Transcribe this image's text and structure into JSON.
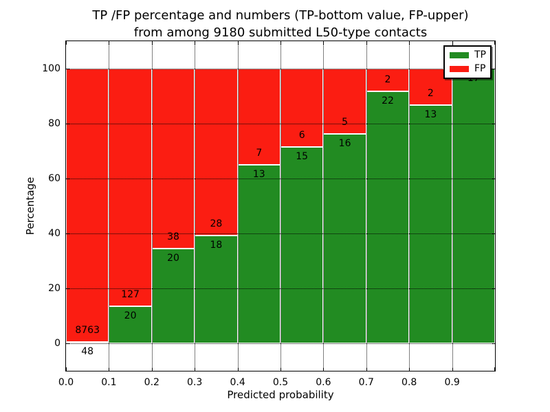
{
  "figure": {
    "title_line1": "TP /FP percentage and numbers (TP-bottom value, FP-upper)",
    "title_line2": "from among 9180 submitted L50-type contacts"
  },
  "colors": {
    "tp_green": "#228b22",
    "fp_red": "#fb1d12",
    "grid": "#000000",
    "background": "#ffffff"
  },
  "chart_data": {
    "type": "bar",
    "stacked": true,
    "units": "percent",
    "title": "TP /FP percentage and numbers (TP-bottom value, FP-upper)\nfrom among 9180 submitted L50-type contacts",
    "xlabel": "Predicted probability",
    "ylabel": "Percentage",
    "xlim": [
      0.0,
      1.0
    ],
    "ylim": [
      -10,
      110
    ],
    "x_ticks": [
      "0.0",
      "0.1",
      "0.2",
      "0.3",
      "0.4",
      "0.5",
      "0.6",
      "0.7",
      "0.8",
      "0.9"
    ],
    "y_ticks": [
      0,
      20,
      40,
      60,
      80,
      100
    ],
    "grid": "dotted",
    "total_contacts": 9180,
    "legend": {
      "position": "upper right",
      "entries": [
        {
          "label": "TP",
          "color": "#228b22"
        },
        {
          "label": "FP",
          "color": "#fb1d12"
        }
      ]
    },
    "bins": [
      {
        "range": [
          0.0,
          0.1
        ],
        "tp": 48,
        "fp": 8763,
        "tp_pct": 0.545,
        "fp_pct": 99.455
      },
      {
        "range": [
          0.1,
          0.2
        ],
        "tp": 20,
        "fp": 127,
        "tp_pct": 13.605,
        "fp_pct": 86.395
      },
      {
        "range": [
          0.2,
          0.3
        ],
        "tp": 20,
        "fp": 38,
        "tp_pct": 34.483,
        "fp_pct": 65.517
      },
      {
        "range": [
          0.3,
          0.4
        ],
        "tp": 18,
        "fp": 28,
        "tp_pct": 39.13,
        "fp_pct": 60.87
      },
      {
        "range": [
          0.4,
          0.5
        ],
        "tp": 13,
        "fp": 7,
        "tp_pct": 65.0,
        "fp_pct": 35.0
      },
      {
        "range": [
          0.5,
          0.6
        ],
        "tp": 15,
        "fp": 6,
        "tp_pct": 71.429,
        "fp_pct": 28.571
      },
      {
        "range": [
          0.6,
          0.7
        ],
        "tp": 16,
        "fp": 5,
        "tp_pct": 76.19,
        "fp_pct": 23.81
      },
      {
        "range": [
          0.7,
          0.8
        ],
        "tp": 22,
        "fp": 2,
        "tp_pct": 91.667,
        "fp_pct": 8.333
      },
      {
        "range": [
          0.8,
          0.9
        ],
        "tp": 13,
        "fp": 2,
        "tp_pct": 86.667,
        "fp_pct": 13.333
      },
      {
        "range": [
          0.9,
          1.0
        ],
        "tp": 17,
        "fp": 0,
        "tp_pct": 100.0,
        "fp_pct": 0.0
      }
    ],
    "bar_labels": {
      "fp_visible": [
        "8763",
        "127",
        "38",
        "28",
        "7",
        "6",
        "5",
        "2",
        "2",
        null
      ],
      "tp_visible": [
        "48",
        "20",
        "20",
        "18",
        "13",
        "15",
        "16",
        "22",
        "13",
        "17"
      ]
    }
  }
}
